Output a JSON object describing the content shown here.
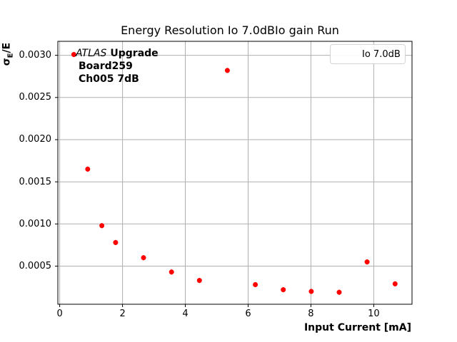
{
  "figure": {
    "title": "Energy Resolution Io 7.0dBIo gain Run",
    "background": "#ffffff"
  },
  "axes": {
    "xlabel": "Input Current [mA]",
    "ylabel_sigma": "σ",
    "ylabel_sub": "E",
    "ylabel_rest": "/E",
    "x_tick_labels": [
      "0",
      "2",
      "4",
      "6",
      "8",
      "10"
    ],
    "y_tick_labels": [
      "0.0005",
      "0.0010",
      "0.0015",
      "0.0020",
      "0.0025",
      "0.0030"
    ]
  },
  "annotation": {
    "line1_italic": "ATLAS",
    "line1_bold": "Upgrade",
    "line2": "Board259",
    "line3": "Ch005 7dB"
  },
  "legend": {
    "label": "Io 7.0dB",
    "marker": "red-errorbar-dot-icon"
  },
  "chart_data": {
    "type": "scatter",
    "title": "Energy Resolution Io 7.0dBIo gain Run",
    "xlabel": "Input Current [mA]",
    "ylabel": "σE/E",
    "series": [
      {
        "name": "Io 7.0dB",
        "color": "#ff0000",
        "x": [
          0.45,
          0.89,
          1.34,
          1.78,
          2.67,
          3.56,
          4.45,
          5.34,
          6.23,
          7.12,
          8.01,
          8.9,
          9.79,
          10.68
        ],
        "y": [
          0.00301,
          0.00165,
          0.00098,
          0.00078,
          0.0006,
          0.00043,
          0.00033,
          0.00282,
          0.00028,
          0.00022,
          0.0002,
          0.00019,
          0.00055,
          0.00029
        ],
        "yerr_approx": 3e-05
      }
    ],
    "xlim": [
      -0.06,
      11.22
    ],
    "ylim": [
      4.8e-05,
      0.003166
    ],
    "x_tick_values": [
      0,
      2,
      4,
      6,
      8,
      10
    ],
    "y_tick_values": [
      0.0005,
      0.001,
      0.0015,
      0.002,
      0.0025,
      0.003
    ],
    "grid": true,
    "grid_color": "#b0b0b0",
    "spine_color": "#000000",
    "marker_color": "#ff0000",
    "legend_position": "upper right"
  }
}
